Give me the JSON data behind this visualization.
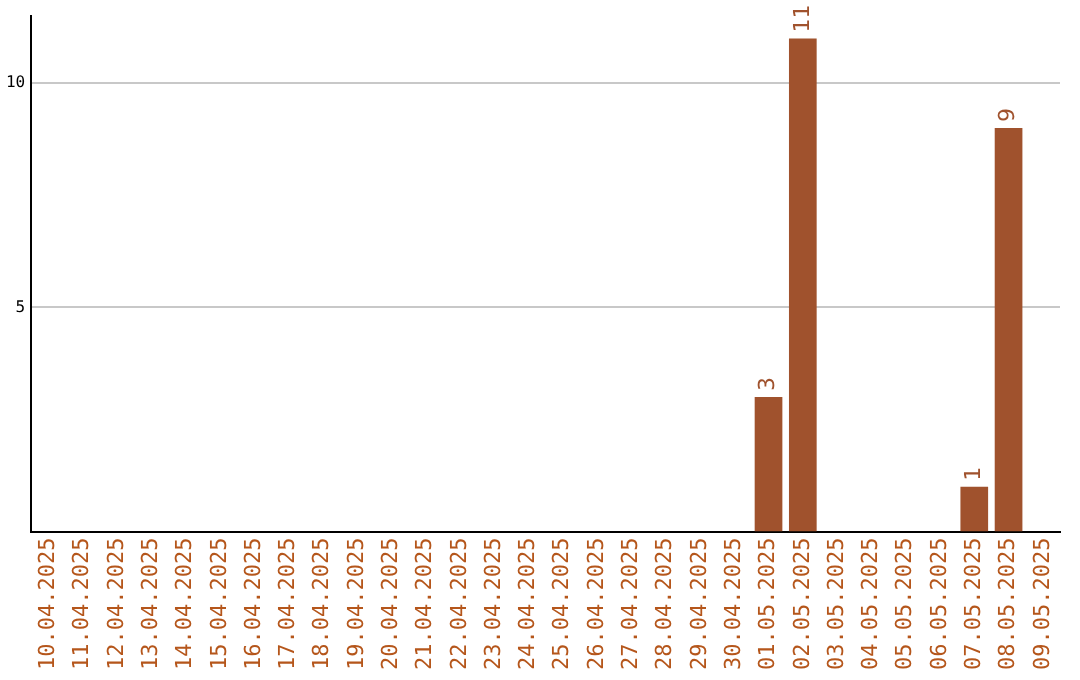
{
  "chart_data": {
    "type": "bar",
    "categories": [
      "10.04.2025",
      "11.04.2025",
      "12.04.2025",
      "13.04.2025",
      "14.04.2025",
      "15.04.2025",
      "16.04.2025",
      "17.04.2025",
      "18.04.2025",
      "19.04.2025",
      "20.04.2025",
      "21.04.2025",
      "22.04.2025",
      "23.04.2025",
      "24.04.2025",
      "25.04.2025",
      "26.04.2025",
      "27.04.2025",
      "28.04.2025",
      "29.04.2025",
      "30.04.2025",
      "01.05.2025",
      "02.05.2025",
      "03.05.2025",
      "04.05.2025",
      "05.05.2025",
      "06.05.2025",
      "07.05.2025",
      "08.05.2025",
      "09.05.2025"
    ],
    "values": [
      0,
      0,
      0,
      0,
      0,
      0,
      0,
      0,
      0,
      0,
      0,
      0,
      0,
      0,
      0,
      0,
      0,
      0,
      0,
      0,
      0,
      3,
      11,
      0,
      0,
      0,
      0,
      1,
      9,
      0
    ],
    "value_labels": [
      null,
      null,
      null,
      null,
      null,
      null,
      null,
      null,
      null,
      null,
      null,
      null,
      null,
      null,
      null,
      null,
      null,
      null,
      null,
      null,
      null,
      "3",
      "11",
      null,
      null,
      null,
      null,
      "1",
      "9",
      null
    ],
    "color": "#a0522d",
    "ylim": [
      0,
      11.5
    ],
    "yticks": [
      5,
      10
    ],
    "grid": "y",
    "legend": false
  }
}
